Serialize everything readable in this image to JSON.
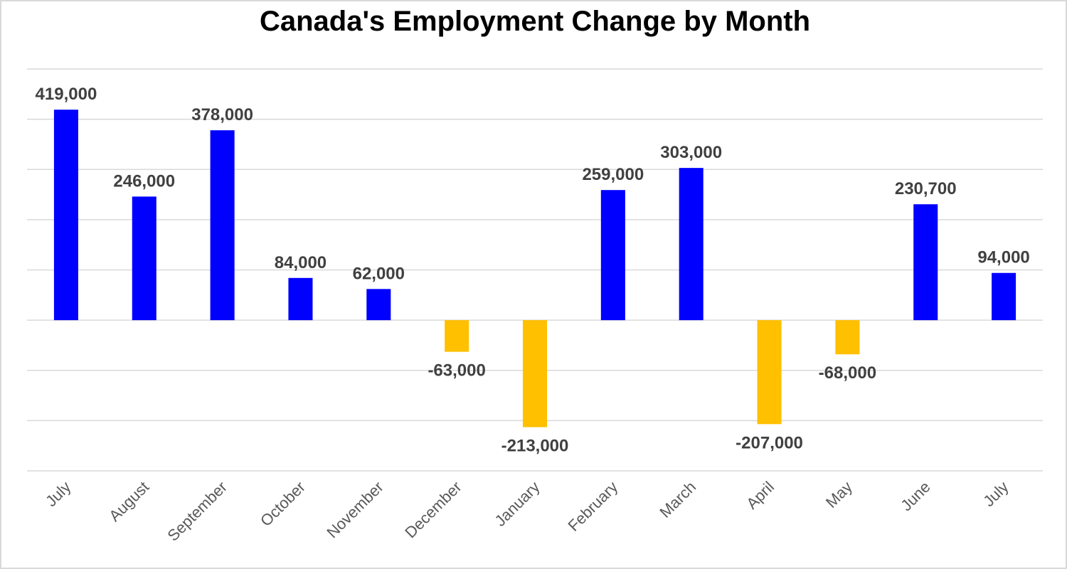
{
  "chart_data": {
    "type": "bar",
    "title": "Canada's Employment Change by Month",
    "xlabel": "",
    "ylabel": "",
    "categories": [
      "July",
      "August",
      "September",
      "October",
      "November",
      "December",
      "January",
      "February",
      "March",
      "April",
      "May",
      "June",
      "July"
    ],
    "values": [
      419000,
      246000,
      378000,
      84000,
      62000,
      -63000,
      -213000,
      259000,
      303000,
      -207000,
      -68000,
      230700,
      94000
    ],
    "data_labels": [
      "419,000",
      "246,000",
      "378,000",
      "84,000",
      "62,000",
      "-63,000",
      "-213,000",
      "259,000",
      "303,000",
      "-207,000",
      "-68,000",
      "230,700",
      "94,000"
    ],
    "ylim": [
      -300000,
      500000
    ],
    "y_gridline_step": 100000,
    "y_tick_labels_shown": false,
    "grid": true,
    "legend": "none",
    "colors": {
      "positive": "#0000FF",
      "negative": "#FFC000",
      "gridline": "#D9D9D9",
      "data_label": "#404040",
      "tick_label": "#595959"
    }
  }
}
